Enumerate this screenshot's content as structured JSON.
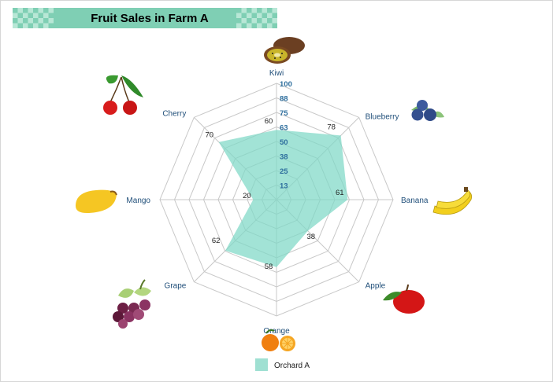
{
  "chart_data": {
    "type": "radar",
    "title": "Fruit Sales in Farm A",
    "categories": [
      "Kiwi",
      "Blueberry",
      "Banana",
      "Apple",
      "Orange",
      "Grape",
      "Mango",
      "Cherry"
    ],
    "series": [
      {
        "name": "Orchard A",
        "values": [
          60,
          78,
          61,
          38,
          58,
          62,
          20,
          70
        ]
      }
    ],
    "rlim": [
      0,
      100
    ],
    "ticks": [
      "13",
      "25",
      "38",
      "50",
      "63",
      "75",
      "88",
      "100"
    ],
    "grid": true,
    "legend": "bottom",
    "colors": {
      "series_fill": "#7ed8c6",
      "grid": "#c8c8c8",
      "axis_label": "#1f4e79",
      "tick_label": "#2e6f9e",
      "title_bg": "#7fcfb4",
      "title_check": "#b8e7d6"
    },
    "icons": [
      "kiwi-icon",
      "blueberry-icon",
      "banana-icon",
      "apple-icon",
      "orange-icon",
      "grape-icon",
      "mango-icon",
      "cherry-icon"
    ]
  }
}
